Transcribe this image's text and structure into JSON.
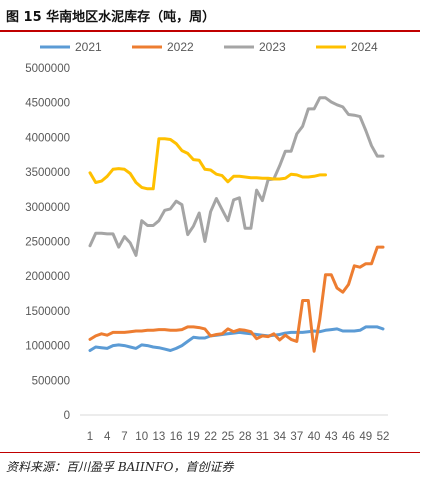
{
  "figure_title": "图 15 华南地区水泥库存（吨，周）",
  "source_note": "资料来源：百川盈孚 BAIINFO，首创证券",
  "chart_data": {
    "type": "line",
    "title": "",
    "xlabel": "",
    "ylabel": "",
    "x": [
      1,
      2,
      3,
      4,
      5,
      6,
      7,
      8,
      9,
      10,
      11,
      12,
      13,
      14,
      15,
      16,
      17,
      18,
      19,
      20,
      21,
      22,
      23,
      24,
      25,
      26,
      27,
      28,
      29,
      30,
      31,
      32,
      33,
      34,
      35,
      36,
      37,
      38,
      39,
      40,
      41,
      42,
      43,
      44,
      45,
      46,
      47,
      48,
      49,
      50,
      51,
      52
    ],
    "x_tick_labels": [
      "1",
      "4",
      "7",
      "10",
      "13",
      "16",
      "19",
      "22",
      "25",
      "28",
      "31",
      "34",
      "37",
      "40",
      "43",
      "46",
      "49",
      "52"
    ],
    "x_tick_values": [
      1,
      4,
      7,
      10,
      13,
      16,
      19,
      22,
      25,
      28,
      31,
      34,
      37,
      40,
      43,
      46,
      49,
      52
    ],
    "ylim": [
      0,
      5000000
    ],
    "y_ticks": [
      0,
      500000,
      1000000,
      1500000,
      2000000,
      2500000,
      3000000,
      3500000,
      4000000,
      4500000,
      5000000
    ],
    "y_tick_labels": [
      "0",
      "500000",
      "1000000",
      "1500000",
      "2000000",
      "2500000",
      "3000000",
      "3500000",
      "4000000",
      "4500000",
      "5000000"
    ],
    "grid": false,
    "legend_position": "top",
    "series": [
      {
        "name": "2021",
        "color": "#5b9bd5",
        "values": [
          930000,
          980000,
          970000,
          960000,
          1000000,
          1010000,
          1000000,
          980000,
          960000,
          1010000,
          1000000,
          980000,
          970000,
          950000,
          930000,
          960000,
          1000000,
          1060000,
          1120000,
          1110000,
          1110000,
          1140000,
          1150000,
          1160000,
          1170000,
          1180000,
          1190000,
          1180000,
          1170000,
          1160000,
          1150000,
          1140000,
          1150000,
          1160000,
          1180000,
          1190000,
          1190000,
          1190000,
          1200000,
          1210000,
          1200000,
          1220000,
          1230000,
          1240000,
          1210000,
          1210000,
          1210000,
          1220000,
          1270000,
          1270000,
          1270000,
          1240000
        ]
      },
      {
        "name": "2022",
        "color": "#ed7d31",
        "values": [
          1090000,
          1140000,
          1170000,
          1150000,
          1190000,
          1190000,
          1190000,
          1200000,
          1210000,
          1210000,
          1220000,
          1220000,
          1230000,
          1230000,
          1220000,
          1220000,
          1230000,
          1270000,
          1270000,
          1260000,
          1240000,
          1140000,
          1160000,
          1170000,
          1240000,
          1200000,
          1230000,
          1220000,
          1200000,
          1100000,
          1140000,
          1130000,
          1170000,
          1080000,
          1150000,
          1090000,
          1060000,
          1650000,
          1650000,
          920000,
          1380000,
          2020000,
          2020000,
          1830000,
          1770000,
          1880000,
          2150000,
          2130000,
          2180000,
          2180000,
          2420000,
          2420000
        ]
      },
      {
        "name": "2023",
        "color": "#a5a5a5",
        "values": [
          2440000,
          2620000,
          2620000,
          2610000,
          2610000,
          2420000,
          2570000,
          2480000,
          2300000,
          2800000,
          2730000,
          2730000,
          2800000,
          2950000,
          2970000,
          3080000,
          3030000,
          2600000,
          2720000,
          2910000,
          2500000,
          2930000,
          3120000,
          2960000,
          2800000,
          3100000,
          3130000,
          2690000,
          2690000,
          3240000,
          3090000,
          3390000,
          3400000,
          3590000,
          3800000,
          3800000,
          4050000,
          4160000,
          4410000,
          4410000,
          4570000,
          4570000,
          4510000,
          4470000,
          4440000,
          4330000,
          4320000,
          4300000,
          4100000,
          3880000,
          3730000,
          3730000
        ]
      },
      {
        "name": "2024",
        "color": "#ffc000",
        "values": [
          3490000,
          3350000,
          3370000,
          3440000,
          3540000,
          3550000,
          3540000,
          3480000,
          3350000,
          3280000,
          3260000,
          3260000,
          3980000,
          3980000,
          3970000,
          3910000,
          3810000,
          3770000,
          3680000,
          3670000,
          3540000,
          3530000,
          3470000,
          3450000,
          3360000,
          3440000,
          3440000,
          3430000,
          3420000,
          3420000,
          3410000,
          3410000,
          3400000,
          3400000,
          3410000,
          3470000,
          3460000,
          3430000,
          3430000,
          3440000,
          3460000,
          3460000,
          null,
          null,
          null,
          null,
          null,
          null,
          null,
          null,
          null,
          null
        ]
      }
    ]
  }
}
